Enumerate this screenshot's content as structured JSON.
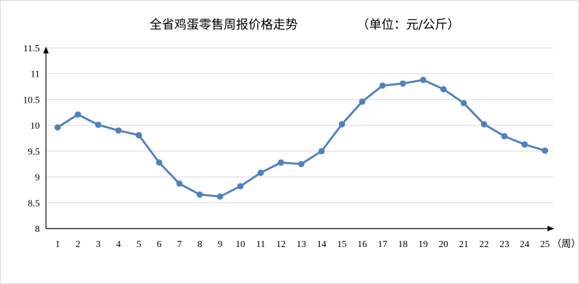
{
  "chart_data": {
    "type": "line",
    "title": "全省鸡蛋零售周报价格走势",
    "unit_note": "（单位：元/公斤）",
    "x_unit": "（周）",
    "categories": [
      "1",
      "2",
      "3",
      "4",
      "5",
      "6",
      "7",
      "8",
      "9",
      "10",
      "11",
      "12",
      "13",
      "14",
      "15",
      "16",
      "17",
      "18",
      "19",
      "20",
      "21",
      "22",
      "23",
      "24",
      "25"
    ],
    "series": [
      {
        "values": [
          9.96,
          10.21,
          10.01,
          9.9,
          9.81,
          9.28,
          8.87,
          8.66,
          8.62,
          8.82,
          9.08,
          9.28,
          9.25,
          9.5,
          10.02,
          10.46,
          10.77,
          10.81,
          10.88,
          10.7,
          10.43,
          10.02,
          9.79,
          9.63,
          9.51
        ]
      }
    ],
    "ylim": [
      8,
      11.5
    ],
    "y_ticks": [
      "8",
      "8.5",
      "9",
      "9.5",
      "10",
      "10.5",
      "11",
      "11.5"
    ],
    "grid": true,
    "legend": "none",
    "colors": {
      "line": "#4f81bd",
      "grid": "#d9d9d9",
      "axis": "#000000"
    }
  }
}
